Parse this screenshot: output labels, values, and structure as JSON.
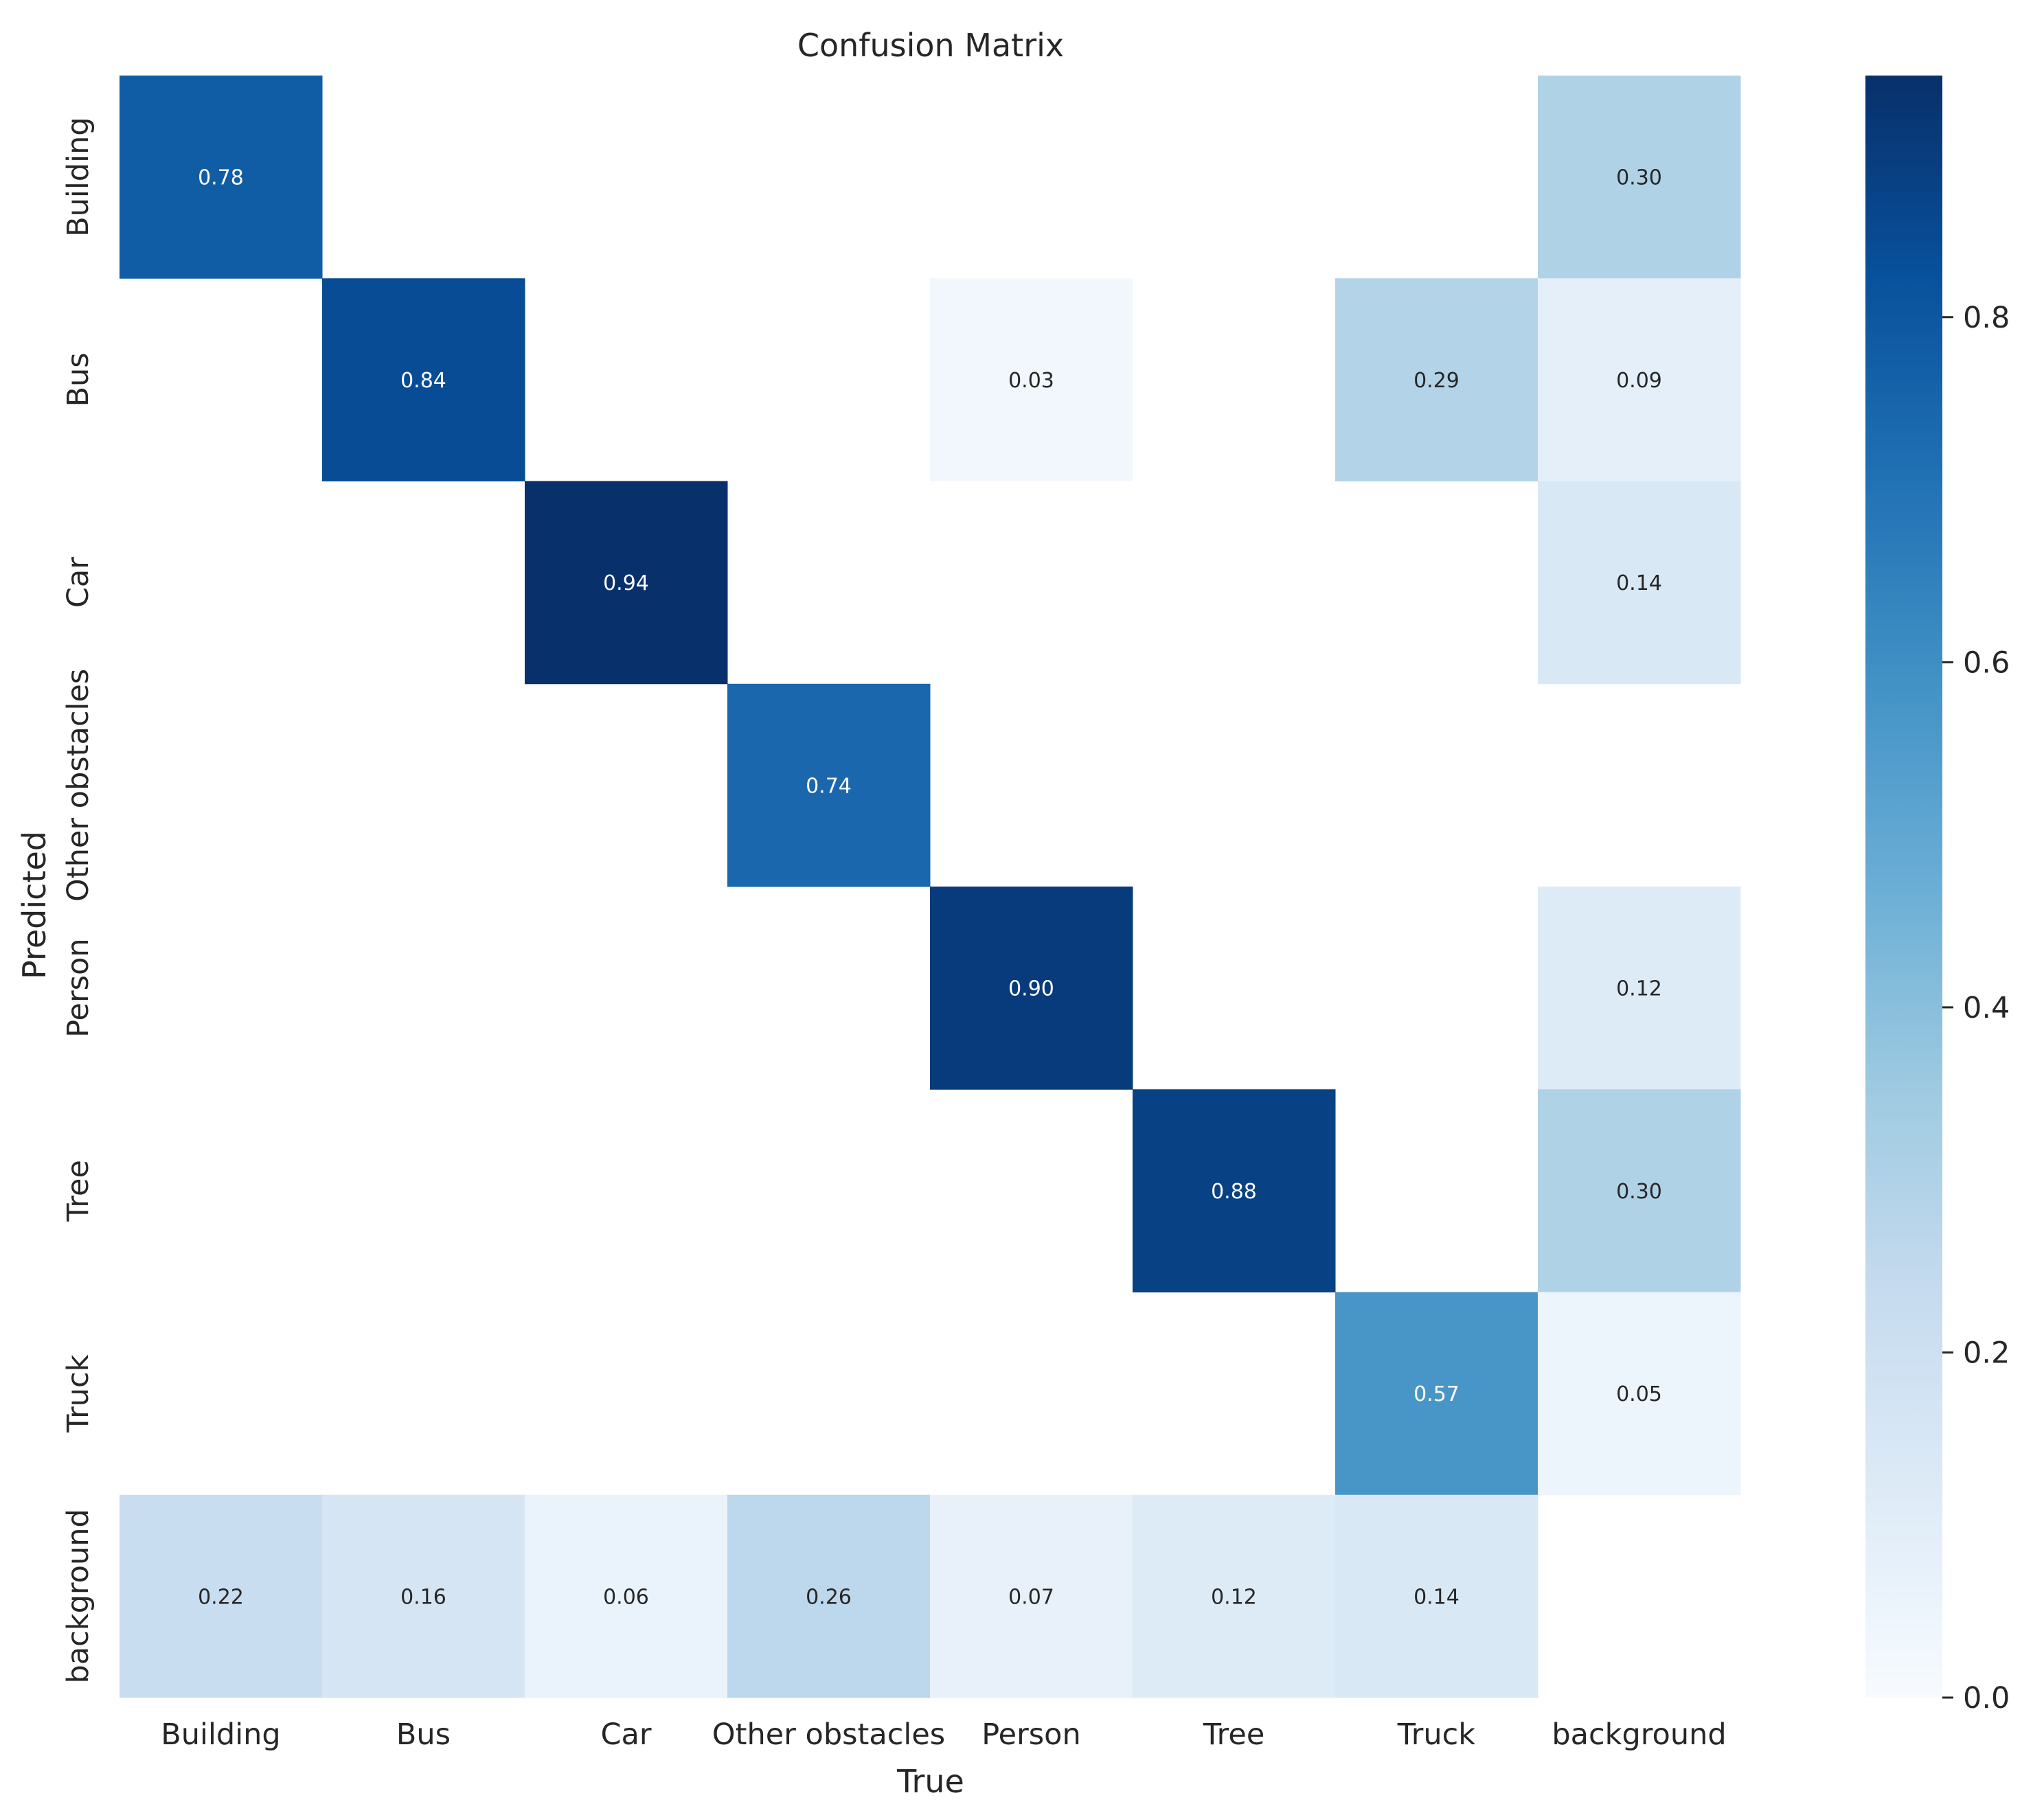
{
  "chart_data": {
    "type": "heatmap",
    "title": "Confusion Matrix",
    "xlabel": "True",
    "ylabel": "Predicted",
    "x_categories": [
      "Building",
      "Bus",
      "Car",
      "Other obstacles",
      "Person",
      "Tree",
      "Truck",
      "background"
    ],
    "y_categories": [
      "Building",
      "Bus",
      "Car",
      "Other obstacles",
      "Person",
      "Tree",
      "Truck",
      "background"
    ],
    "values": [
      [
        0.78,
        null,
        null,
        null,
        null,
        null,
        null,
        0.3
      ],
      [
        null,
        0.84,
        null,
        null,
        0.03,
        null,
        0.29,
        0.09
      ],
      [
        null,
        null,
        0.94,
        null,
        null,
        null,
        null,
        0.14
      ],
      [
        null,
        null,
        null,
        0.74,
        null,
        null,
        null,
        null
      ],
      [
        null,
        null,
        null,
        null,
        0.9,
        null,
        null,
        0.12
      ],
      [
        null,
        null,
        null,
        null,
        null,
        0.88,
        null,
        0.3
      ],
      [
        null,
        null,
        null,
        null,
        null,
        null,
        0.57,
        0.05
      ],
      [
        0.22,
        0.16,
        0.06,
        0.26,
        0.07,
        0.12,
        0.14,
        null
      ]
    ],
    "value_labels": [
      [
        "0.78",
        "",
        "",
        "",
        "",
        "",
        "",
        "0.30"
      ],
      [
        "",
        "0.84",
        "",
        "",
        "0.03",
        "",
        "0.29",
        "0.09"
      ],
      [
        "",
        "",
        "0.94",
        "",
        "",
        "",
        "",
        "0.14"
      ],
      [
        "",
        "",
        "",
        "0.74",
        "",
        "",
        "",
        ""
      ],
      [
        "",
        "",
        "",
        "",
        "0.90",
        "",
        "",
        "0.12"
      ],
      [
        "",
        "",
        "",
        "",
        "",
        "0.88",
        "",
        "0.30"
      ],
      [
        "",
        "",
        "",
        "",
        "",
        "",
        "0.57",
        "0.05"
      ],
      [
        "0.22",
        "0.16",
        "0.06",
        "0.26",
        "0.07",
        "0.12",
        "0.14",
        ""
      ]
    ],
    "colormap": "Blues",
    "colorbar": {
      "range": [
        0.0,
        0.94
      ],
      "ticks": [
        0.0,
        0.2,
        0.4,
        0.6,
        0.8
      ],
      "tick_labels": [
        "0.0",
        "0.2",
        "0.4",
        "0.6",
        "0.8"
      ]
    },
    "grid": false
  }
}
